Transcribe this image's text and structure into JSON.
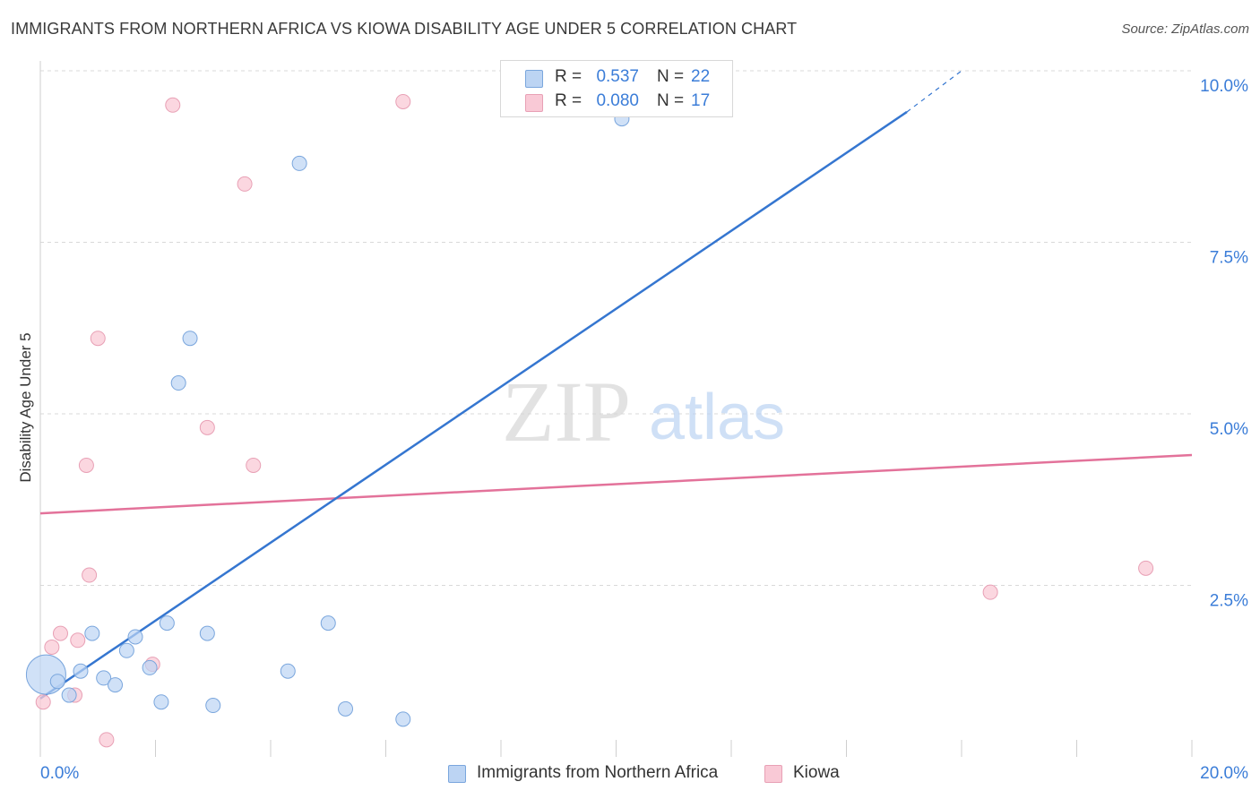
{
  "title": "IMMIGRANTS FROM NORTHERN AFRICA VS KIOWA DISABILITY AGE UNDER 5 CORRELATION CHART",
  "source": "Source: ZipAtlas.com",
  "watermark": {
    "zip": "ZIP",
    "atlas": "atlas"
  },
  "legend": {
    "rows": [
      {
        "r_label": "R =",
        "r_value": "0.537",
        "n_label": "N =",
        "n_value": "22"
      },
      {
        "r_label": "R =",
        "r_value": "0.080",
        "n_label": "N =",
        "n_value": "17"
      }
    ]
  },
  "bottom_legend": [
    "Immigrants from Northern Africa",
    "Kiowa"
  ],
  "colors": {
    "blue_fill": "#bcd4f3",
    "blue_stroke": "#7aa6dd",
    "blue_line": "#3576d0",
    "pink_fill": "#f9c9d6",
    "pink_stroke": "#e8a0b5",
    "pink_line": "#e3729a",
    "grid": "#d9d9d9",
    "tick_text": "#3b7dd8"
  },
  "chart_data": {
    "type": "scatter",
    "ylabel": "Disability Age Under 5",
    "xlim": [
      0,
      20
    ],
    "ylim": [
      0,
      10
    ],
    "x_tick_labels": [
      "0.0%",
      "20.0%"
    ],
    "y_ticks": [
      2.5,
      5.0,
      7.5,
      10.0
    ],
    "y_tick_labels": [
      "2.5%",
      "5.0%",
      "7.5%",
      "10.0%"
    ],
    "grid": true,
    "series": [
      {
        "name": "Immigrants from Northern Africa",
        "points": [
          [
            0.1,
            1.2
          ],
          [
            0.3,
            1.1
          ],
          [
            0.5,
            0.9
          ],
          [
            0.7,
            1.25
          ],
          [
            0.9,
            1.8
          ],
          [
            1.1,
            1.15
          ],
          [
            1.3,
            1.05
          ],
          [
            1.5,
            1.55
          ],
          [
            1.65,
            1.75
          ],
          [
            1.9,
            1.3
          ],
          [
            2.1,
            0.8
          ],
          [
            2.2,
            1.95
          ],
          [
            2.4,
            5.45
          ],
          [
            2.6,
            6.1
          ],
          [
            2.9,
            1.8
          ],
          [
            3.0,
            0.75
          ],
          [
            4.3,
            1.25
          ],
          [
            4.5,
            8.65
          ],
          [
            5.0,
            1.95
          ],
          [
            5.3,
            0.7
          ],
          [
            6.3,
            0.55
          ],
          [
            10.1,
            9.3
          ]
        ],
        "trend": {
          "x": [
            0.0,
            15.05
          ],
          "y": [
            0.85,
            9.4
          ],
          "dashed_to": [
            16.0,
            10.0
          ]
        }
      },
      {
        "name": "Kiowa",
        "points": [
          [
            0.05,
            0.8
          ],
          [
            0.2,
            1.6
          ],
          [
            0.35,
            1.8
          ],
          [
            0.6,
            0.9
          ],
          [
            0.65,
            1.7
          ],
          [
            0.8,
            4.25
          ],
          [
            0.85,
            2.65
          ],
          [
            1.0,
            6.1
          ],
          [
            1.15,
            0.25
          ],
          [
            1.95,
            1.35
          ],
          [
            2.3,
            9.5
          ],
          [
            2.9,
            4.8
          ],
          [
            3.55,
            8.35
          ],
          [
            3.7,
            4.25
          ],
          [
            6.3,
            9.55
          ],
          [
            16.5,
            2.4
          ],
          [
            19.2,
            2.75
          ]
        ],
        "trend": {
          "x": [
            0.0,
            20.0
          ],
          "y": [
            3.55,
            4.4
          ]
        }
      }
    ]
  }
}
